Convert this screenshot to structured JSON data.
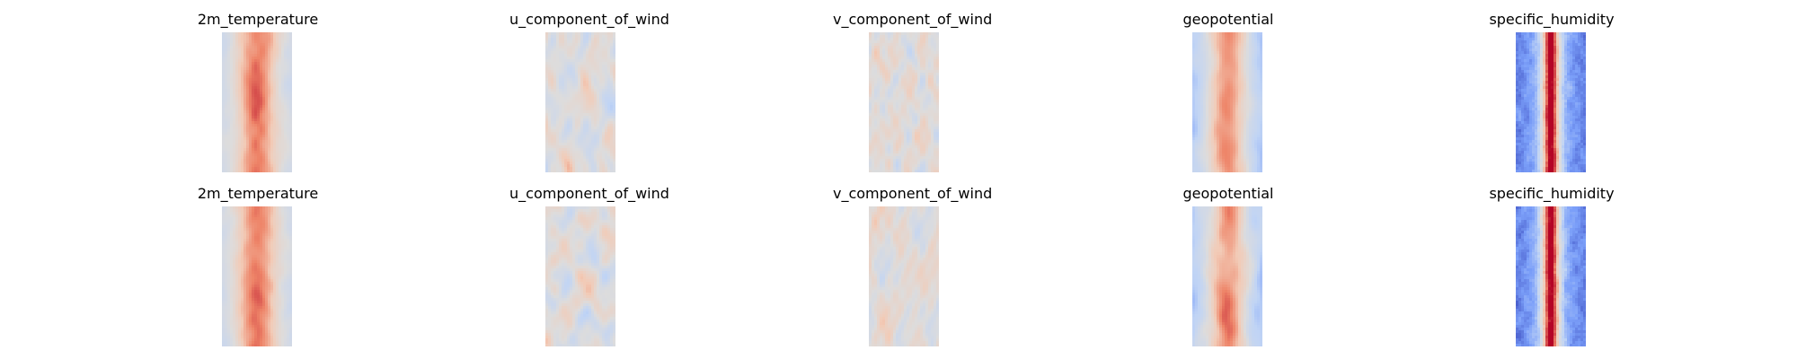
{
  "figure": {
    "rows": [
      {
        "panels": [
          {
            "title": "2m_temperature",
            "field": "temperature",
            "seed": 11
          },
          {
            "title": "u_component_of_wind",
            "field": "u_wind",
            "seed": 12
          },
          {
            "title": "v_component_of_wind",
            "field": "v_wind",
            "seed": 13
          },
          {
            "title": "geopotential",
            "field": "geopotential",
            "seed": 14
          },
          {
            "title": "specific_humidity",
            "field": "humidity",
            "seed": 15
          }
        ]
      },
      {
        "panels": [
          {
            "title": "2m_temperature",
            "field": "temperature",
            "seed": 21
          },
          {
            "title": "u_component_of_wind",
            "field": "u_wind",
            "seed": 22
          },
          {
            "title": "v_component_of_wind",
            "field": "v_wind",
            "seed": 23
          },
          {
            "title": "geopotential",
            "field": "geopotential",
            "seed": 24
          },
          {
            "title": "specific_humidity",
            "field": "humidity",
            "seed": 25
          }
        ]
      }
    ]
  },
  "chart_data": {
    "type": "heatmap",
    "colormap": "coolwarm",
    "colormap_stops": [
      "#3b4cc0",
      "#7b9ff9",
      "#c0d4f5",
      "#dddcdc",
      "#f2cbb7",
      "#ee8468",
      "#b40426"
    ],
    "axes_visible": false,
    "grid": false,
    "legend": "none",
    "panels": [
      {
        "row": 0,
        "col": 0,
        "title": "2m_temperature"
      },
      {
        "row": 0,
        "col": 1,
        "title": "u_component_of_wind"
      },
      {
        "row": 0,
        "col": 2,
        "title": "v_component_of_wind"
      },
      {
        "row": 0,
        "col": 3,
        "title": "geopotential"
      },
      {
        "row": 0,
        "col": 4,
        "title": "specific_humidity"
      },
      {
        "row": 1,
        "col": 0,
        "title": "2m_temperature"
      },
      {
        "row": 1,
        "col": 1,
        "title": "u_component_of_wind"
      },
      {
        "row": 1,
        "col": 2,
        "title": "v_component_of_wind"
      },
      {
        "row": 1,
        "col": 3,
        "title": "geopotential"
      },
      {
        "row": 1,
        "col": 4,
        "title": "specific_humidity"
      }
    ]
  }
}
